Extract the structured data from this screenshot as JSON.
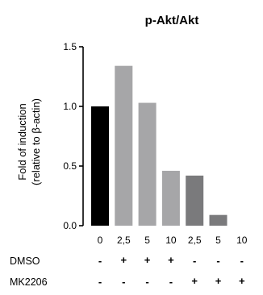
{
  "chart_data": {
    "type": "bar",
    "title": "p-Akt/Akt",
    "ylabel_line1": "Fold of induction",
    "ylabel_line2": "(relative to β-actin)",
    "ylim": [
      0,
      1.5
    ],
    "yticks": [
      "0.0",
      "0.5",
      "1.0",
      "1.5"
    ],
    "ytick_values": [
      0,
      0.5,
      1.0,
      1.5
    ],
    "categories": [
      "0",
      "2,5",
      "5",
      "10",
      "2,5",
      "5",
      "10"
    ],
    "values": [
      1.0,
      1.34,
      1.03,
      0.46,
      0.42,
      0.09,
      0.0
    ],
    "bar_colors": [
      "#000000",
      "#a6a6a8",
      "#a6a6a8",
      "#a6a6a8",
      "#7a7a7c",
      "#7a7a7c",
      "#7a7a7c"
    ],
    "treatment_rows": [
      {
        "label": "DMSO",
        "marks": [
          "-",
          "+",
          "+",
          "+",
          "-",
          "-",
          "-"
        ]
      },
      {
        "label": "MK2206",
        "marks": [
          "-",
          "-",
          "-",
          "-",
          "+",
          "+",
          "+"
        ]
      }
    ]
  }
}
